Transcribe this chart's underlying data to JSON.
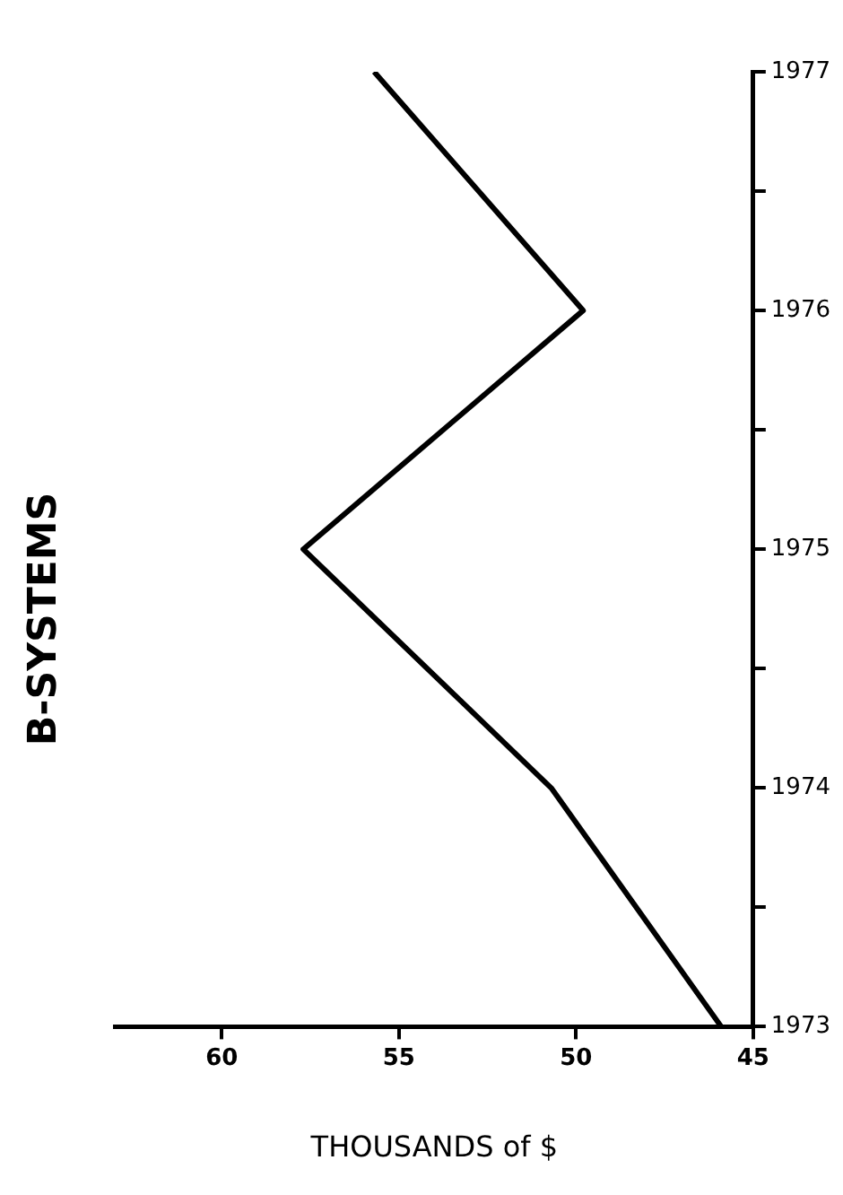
{
  "chart_data": {
    "type": "line",
    "title": "B-SYSTEMS",
    "xlabel": "THOUSANDS of $",
    "x": [
      45.9,
      50.7,
      57.7,
      49.8,
      55.7
    ],
    "series": [
      {
        "color": "#000000",
        "values": [
          1973,
          1974,
          1975,
          1976,
          1977
        ]
      }
    ],
    "xlim": [
      63,
      45
    ],
    "xticks": [
      45,
      50,
      55,
      60
    ],
    "ylim": [
      1973,
      1977
    ],
    "yticks": [
      1973,
      {
        "value": 1973.5,
        "label": null
      },
      1974,
      {
        "value": 1974.5,
        "label": null
      },
      1975,
      {
        "value": 1975.5,
        "label": null
      },
      1976,
      {
        "value": 1976.5,
        "label": null
      },
      1977
    ],
    "grid": false,
    "legend": false,
    "marker": "none",
    "line_style": "solid"
  }
}
